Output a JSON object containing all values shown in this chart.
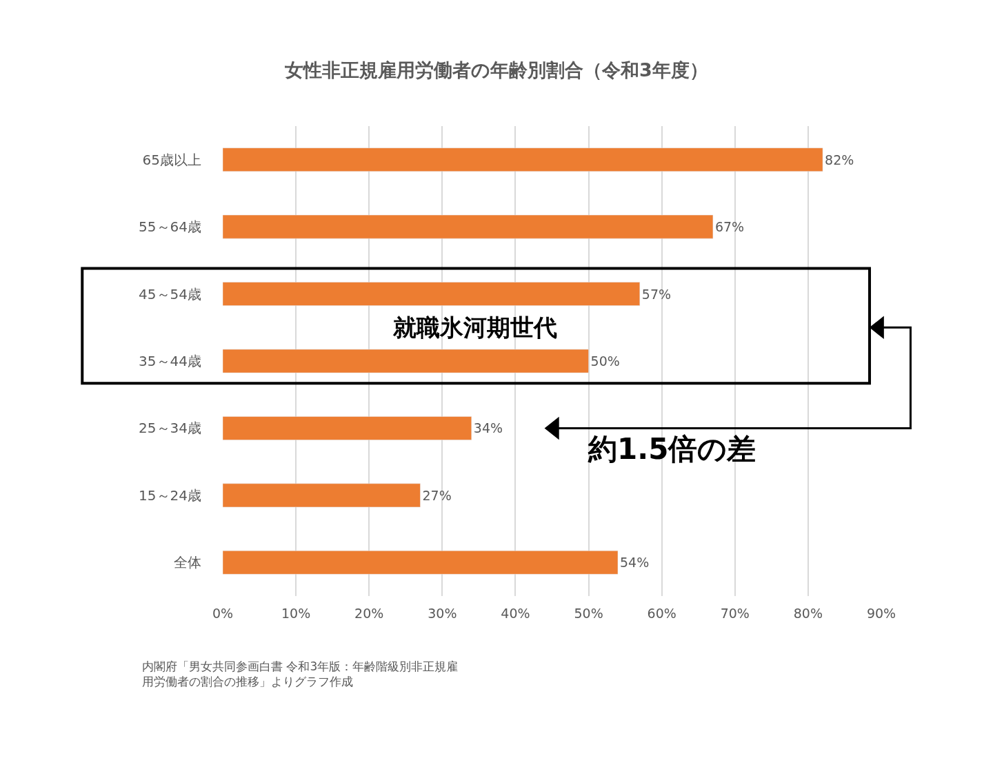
{
  "chart_data": {
    "type": "bar",
    "orientation": "horizontal",
    "title": "女性非正規雇用労働者の年齢別割合（令和3年度）",
    "categories": [
      "65歳以上",
      "55～64歳",
      "45～54歳",
      "35～44歳",
      "25～34歳",
      "15～24歳",
      "全体"
    ],
    "values": [
      82,
      67,
      57,
      50,
      34,
      27,
      54
    ],
    "value_labels": [
      "82%",
      "67%",
      "57%",
      "50%",
      "34%",
      "27%",
      "54%"
    ],
    "color": "#ed7d31",
    "xlim": [
      0,
      90
    ],
    "xticks": [
      {
        "value": 0,
        "label": "0%"
      },
      {
        "value": 10,
        "label": "10%"
      },
      {
        "value": 20,
        "label": "20%"
      },
      {
        "value": 30,
        "label": "30%"
      },
      {
        "value": 40,
        "label": "40%"
      },
      {
        "value": 50,
        "label": "50%"
      },
      {
        "value": 60,
        "label": "60%"
      },
      {
        "value": 70,
        "label": "70%"
      },
      {
        "value": 80,
        "label": "80%"
      },
      {
        "value": 90,
        "label": "90%"
      }
    ],
    "grid": "x",
    "legend": false,
    "annotations": [
      "就職氷河期世代",
      "約1.5倍の差",
      "内閣府「男女共同参画白書 令和3年版：年齢階級別非正規雇用労働者の割合の推移」よりグラフ作成"
    ]
  }
}
